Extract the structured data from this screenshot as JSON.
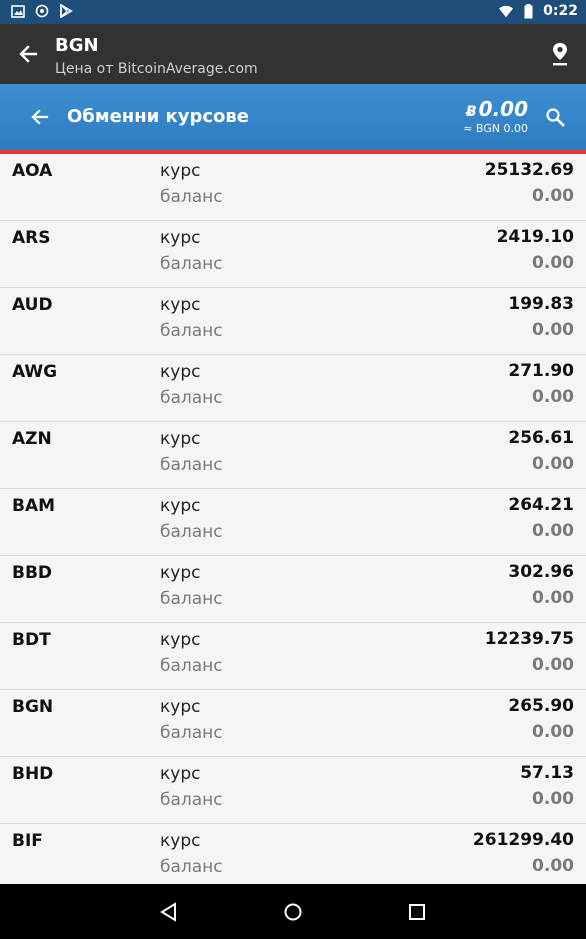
{
  "status_bar": {
    "time": "0:22",
    "icons": [
      "image-icon",
      "target-icon",
      "play-store-icon",
      "wifi-icon",
      "battery-icon"
    ]
  },
  "app_bar": {
    "title": "BGN",
    "subtitle": "Цена от BitcoinAverage.com",
    "icons": [
      "back-arrow-icon",
      "location-pin-icon"
    ]
  },
  "toolbar": {
    "title": "Обменни курсове",
    "balance_symbol": "Ƀ",
    "balance_amount": "0.00",
    "balance_approx": "≈ BGN 0.00",
    "icons": [
      "back-arrow-icon",
      "search-icon"
    ]
  },
  "labels": {
    "rate": "курс",
    "balance": "баланс"
  },
  "rates": [
    {
      "code": "AOA",
      "rate": "25132.69",
      "balance": "0.00"
    },
    {
      "code": "ARS",
      "rate": "2419.10",
      "balance": "0.00"
    },
    {
      "code": "AUD",
      "rate": "199.83",
      "balance": "0.00"
    },
    {
      "code": "AWG",
      "rate": "271.90",
      "balance": "0.00"
    },
    {
      "code": "AZN",
      "rate": "256.61",
      "balance": "0.00"
    },
    {
      "code": "BAM",
      "rate": "264.21",
      "balance": "0.00"
    },
    {
      "code": "BBD",
      "rate": "302.96",
      "balance": "0.00"
    },
    {
      "code": "BDT",
      "rate": "12239.75",
      "balance": "0.00"
    },
    {
      "code": "BGN",
      "rate": "265.90",
      "balance": "0.00"
    },
    {
      "code": "BHD",
      "rate": "57.13",
      "balance": "0.00"
    },
    {
      "code": "BIF",
      "rate": "261299.40",
      "balance": "0.00"
    }
  ],
  "nav_bar": {
    "icons": [
      "back-triangle-icon",
      "home-circle-icon",
      "recents-square-icon"
    ]
  },
  "colors": {
    "status_bar": "#1e4f7a",
    "app_bar": "#323232",
    "toolbar": "#3a8acc",
    "accent_line": "#e8323c"
  }
}
